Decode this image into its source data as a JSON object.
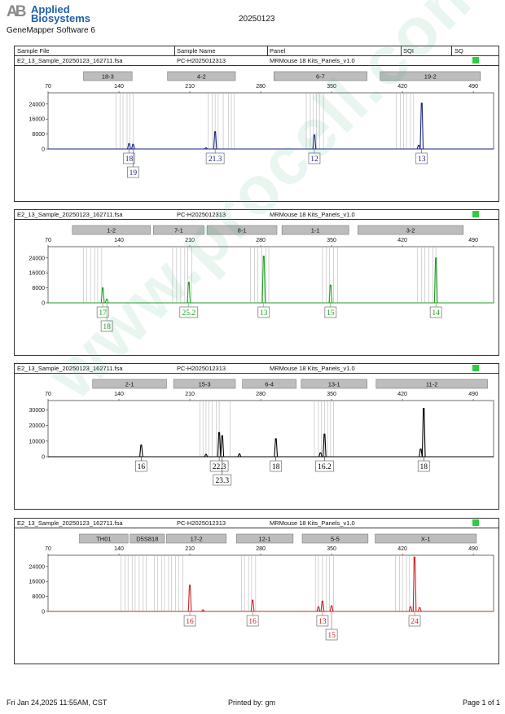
{
  "header": {
    "logo_mark": "AB",
    "logo_line1": "Applied",
    "logo_line2": "Biosystems",
    "software": "GeneMapper Software 6",
    "date": "20250123"
  },
  "columns": {
    "sample_file": "Sample File",
    "sample_name": "Sample Name",
    "panel": "Panel",
    "sqi": "SQI",
    "sq": "SQ"
  },
  "colors": {
    "blue": "#1a237e",
    "green": "#1f9d1f",
    "black": "#000000",
    "red": "#c62828",
    "sq_status": "#2ecc40",
    "bin": "#b8b8b8",
    "marker_fill": "#bdbdbd"
  },
  "watermark": "www.procell.com.cn",
  "footer": {
    "left": "Fri Jan 24,2025 11:55AM, CST",
    "center": "Printed by: gm",
    "right": "Page 1 of 1"
  },
  "chart_data": [
    {
      "type": "line",
      "dye": "blue",
      "sample_file": "E2_13_Sample_20250123_162711.fsa",
      "sample_name": "PC-H2025012313",
      "panel": "MRMouse 18 Kits_Panels_v1.0",
      "xlim": [
        70,
        510
      ],
      "x_ticks": [
        "70",
        "140",
        "210",
        "280",
        "350",
        "420",
        "490"
      ],
      "ylim": [
        0,
        30000
      ],
      "y_ticks": [
        "0",
        "8000",
        "16000",
        "24000"
      ],
      "markers": [
        {
          "label": "18-3",
          "start": 105,
          "end": 153
        },
        {
          "label": "4-2",
          "start": 188,
          "end": 255
        },
        {
          "label": "6-7",
          "start": 293,
          "end": 385
        },
        {
          "label": "19-2",
          "start": 398,
          "end": 497
        }
      ],
      "bins": [
        137,
        141,
        144,
        148,
        151,
        154,
        228,
        232,
        235,
        238,
        243,
        248,
        251,
        254,
        325,
        329,
        332,
        335,
        338,
        342,
        414,
        418,
        421,
        424,
        428,
        431
      ],
      "peaks": [
        {
          "x": 150,
          "y": 2800
        },
        {
          "x": 154,
          "y": 2500
        },
        {
          "x": 226,
          "y": 600
        },
        {
          "x": 235,
          "y": 9200
        },
        {
          "x": 333,
          "y": 7500
        },
        {
          "x": 436,
          "y": 2000
        },
        {
          "x": 439,
          "y": 24500
        }
      ],
      "allele_labels": [
        {
          "text": "18",
          "x": 150,
          "row": 0
        },
        {
          "text": "19",
          "x": 154,
          "row": 1
        },
        {
          "text": "21.3",
          "x": 235,
          "row": 0
        },
        {
          "text": "12",
          "x": 333,
          "row": 0
        },
        {
          "text": "13",
          "x": 439,
          "row": 0
        }
      ]
    },
    {
      "type": "line",
      "dye": "green",
      "sample_file": "E2_13_Sample_20250123_162711.fsa",
      "sample_name": "PC-H2025012313",
      "panel": "MRMouse 18 Kits_Panels_v1.0",
      "xlim": [
        70,
        510
      ],
      "x_ticks": [
        "70",
        "140",
        "210",
        "280",
        "350",
        "420",
        "490"
      ],
      "ylim": [
        0,
        30000
      ],
      "y_ticks": [
        "0",
        "8000",
        "16000",
        "24000"
      ],
      "markers": [
        {
          "label": "1-2",
          "start": 94,
          "end": 171
        },
        {
          "label": "7-1",
          "start": 174,
          "end": 224
        },
        {
          "label": "8-1",
          "start": 227,
          "end": 296
        },
        {
          "label": "1-1",
          "start": 301,
          "end": 367
        },
        {
          "label": "3-2",
          "start": 376,
          "end": 480
        }
      ],
      "bins": [
        105,
        108,
        112,
        116,
        119,
        123,
        193,
        197,
        201,
        205,
        208,
        212,
        270,
        274,
        277,
        281,
        285,
        288,
        341,
        345,
        348,
        352,
        356,
        435,
        439,
        442,
        446,
        450,
        453
      ],
      "peaks": [
        {
          "x": 124,
          "y": 8000
        },
        {
          "x": 128,
          "y": 2000
        },
        {
          "x": 209,
          "y": 11000
        },
        {
          "x": 283,
          "y": 25000
        },
        {
          "x": 349,
          "y": 9500
        },
        {
          "x": 453,
          "y": 24000
        }
      ],
      "allele_labels": [
        {
          "text": "17",
          "x": 124,
          "row": 0
        },
        {
          "text": "18",
          "x": 128,
          "row": 1
        },
        {
          "text": "25.2",
          "x": 209,
          "row": 0
        },
        {
          "text": "13",
          "x": 283,
          "row": 0
        },
        {
          "text": "15",
          "x": 349,
          "row": 0
        },
        {
          "text": "14",
          "x": 453,
          "row": 0
        }
      ]
    },
    {
      "type": "line",
      "dye": "black",
      "sample_file": "E2_13_Sample_20250123_162711.fsa",
      "sample_name": "PC-H2025012313",
      "panel": "MRMouse 18 Kits_Panels_v1.0",
      "xlim": [
        70,
        510
      ],
      "x_ticks": [
        "70",
        "140",
        "210",
        "280",
        "350",
        "420",
        "490"
      ],
      "ylim": [
        0,
        36000
      ],
      "y_ticks": [
        "0",
        "10000",
        "20000",
        "30000"
      ],
      "markers": [
        {
          "label": "2-1",
          "start": 114,
          "end": 187
        },
        {
          "label": "15-3",
          "start": 194,
          "end": 255
        },
        {
          "label": "6-4",
          "start": 262,
          "end": 315
        },
        {
          "label": "13-1",
          "start": 320,
          "end": 385
        },
        {
          "label": "11-2",
          "start": 394,
          "end": 504
        }
      ],
      "bins": [
        220,
        223,
        226,
        229,
        232,
        236,
        239,
        250,
        333,
        337,
        340,
        343,
        346,
        349,
        352
      ],
      "peaks": [
        {
          "x": 162,
          "y": 7500
        },
        {
          "x": 226,
          "y": 1500
        },
        {
          "x": 239,
          "y": 15500
        },
        {
          "x": 242,
          "y": 13500
        },
        {
          "x": 259,
          "y": 1800
        },
        {
          "x": 295,
          "y": 11500
        },
        {
          "x": 339,
          "y": 2500
        },
        {
          "x": 343,
          "y": 14500
        },
        {
          "x": 438,
          "y": 5000
        },
        {
          "x": 441,
          "y": 31000
        }
      ],
      "allele_labels": [
        {
          "text": "16",
          "x": 162,
          "row": 0
        },
        {
          "text": "22.3",
          "x": 239,
          "row": 0
        },
        {
          "text": "23.3",
          "x": 242,
          "row": 1
        },
        {
          "text": "18",
          "x": 295,
          "row": 0
        },
        {
          "text": "16.2",
          "x": 343,
          "row": 0
        },
        {
          "text": "18",
          "x": 441,
          "row": 0
        }
      ]
    },
    {
      "type": "line",
      "dye": "red",
      "sample_file": "E2_13_Sample_20250123_162711.fsa",
      "sample_name": "PC-H2025012313",
      "panel": "MRMouse 18 Kits_Panels_v1.0",
      "xlim": [
        70,
        510
      ],
      "x_ticks": [
        "70",
        "140",
        "210",
        "280",
        "350",
        "420",
        "490"
      ],
      "ylim": [
        0,
        30000
      ],
      "y_ticks": [
        "0",
        "8000",
        "16000",
        "24000"
      ],
      "markers": [
        {
          "label": "TH01",
          "start": 101,
          "end": 149
        },
        {
          "label": "D5S818",
          "start": 151,
          "end": 185
        },
        {
          "label": "17-2",
          "start": 187,
          "end": 246
        },
        {
          "label": "12-1",
          "start": 256,
          "end": 312
        },
        {
          "label": "5-5",
          "start": 321,
          "end": 386
        },
        {
          "label": "X-1",
          "start": 393,
          "end": 493
        }
      ],
      "bins": [
        142,
        146,
        149,
        153,
        156,
        160,
        164,
        167,
        175,
        178,
        182,
        185,
        189,
        192,
        196,
        199,
        203,
        261,
        264,
        268,
        271,
        275,
        334,
        337,
        341,
        345,
        348,
        352,
        413,
        417,
        420,
        424,
        427,
        431
      ],
      "peaks": [
        {
          "x": 210,
          "y": 14000
        },
        {
          "x": 223,
          "y": 800
        },
        {
          "x": 272,
          "y": 6000
        },
        {
          "x": 337,
          "y": 2500
        },
        {
          "x": 341,
          "y": 5500
        },
        {
          "x": 350,
          "y": 3000
        },
        {
          "x": 428,
          "y": 2500
        },
        {
          "x": 432,
          "y": 29000
        },
        {
          "x": 437,
          "y": 2000
        }
      ],
      "allele_labels": [
        {
          "text": "16",
          "x": 210,
          "row": 0
        },
        {
          "text": "16",
          "x": 272,
          "row": 0
        },
        {
          "text": "13",
          "x": 341,
          "row": 0
        },
        {
          "text": "15",
          "x": 350,
          "row": 1
        },
        {
          "text": "24",
          "x": 432,
          "row": 0
        }
      ]
    }
  ]
}
